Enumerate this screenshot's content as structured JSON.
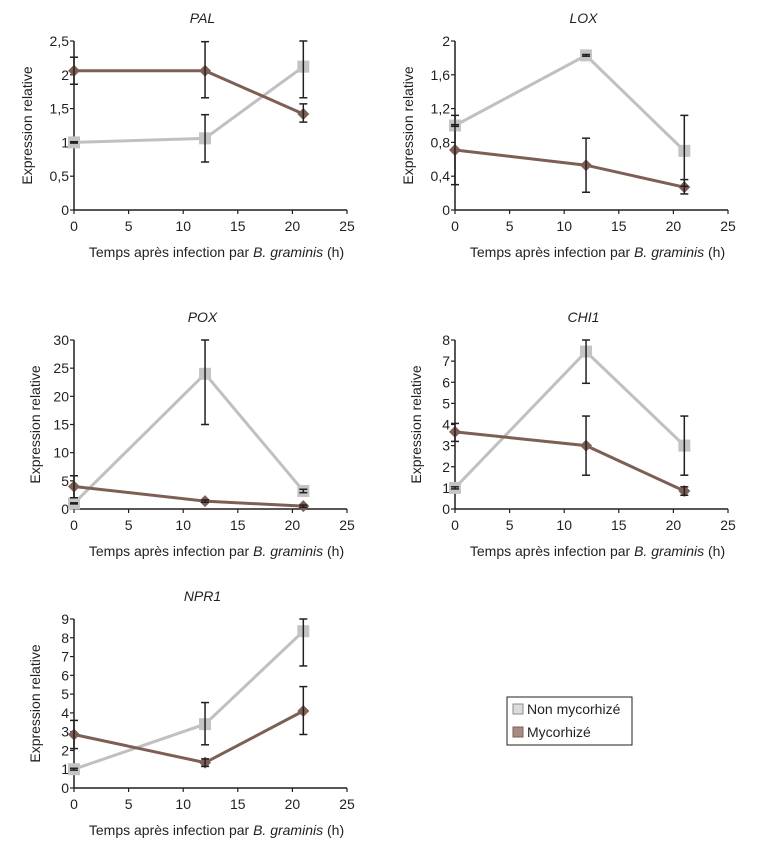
{
  "legend": {
    "items": [
      {
        "label": "Non mycorhizé",
        "color": "#c0c0c0"
      },
      {
        "label": "Mycorhizé",
        "color": "#8b6a60"
      }
    ]
  },
  "colors": {
    "non_mycorhize": "#c0c0c0",
    "mycorhize": "#7e5f55",
    "error_bar": "#231f20",
    "axis": "#231f20"
  },
  "chart_data": [
    {
      "id": "pal",
      "type": "line",
      "title": "PAL",
      "xlabel_prefix": "Temps après infection par ",
      "xlabel_italic": "B. graminis",
      "xlabel_suffix": " (h)",
      "ylabel": "Expression relative",
      "x_ticks": [
        0,
        5,
        10,
        15,
        20,
        25
      ],
      "x_tick_labels": [
        "0",
        "5",
        "10",
        "15",
        "20",
        "25"
      ],
      "xlim": [
        0,
        25
      ],
      "y_ticks": [
        0,
        0.5,
        1,
        1.5,
        2,
        2.5
      ],
      "y_tick_labels": [
        "0",
        "0,5",
        "1",
        "1,5",
        "2",
        "2,5"
      ],
      "ylim": [
        0,
        2.5
      ],
      "grid": false,
      "series": [
        {
          "name": "Non mycorhizé",
          "marker": "square",
          "x": [
            0,
            12,
            21
          ],
          "values": [
            1.0,
            1.06,
            2.12
          ],
          "err_low": [
            0.99,
            0.71,
            1.66
          ],
          "err_high": [
            1.01,
            1.41,
            2.5
          ]
        },
        {
          "name": "Mycorhizé",
          "marker": "diamond",
          "x": [
            0,
            12,
            21
          ],
          "values": [
            2.06,
            2.06,
            1.42
          ],
          "err_low": [
            1.86,
            1.66,
            1.3
          ],
          "err_high": [
            2.26,
            2.49,
            1.57
          ]
        }
      ]
    },
    {
      "id": "lox",
      "type": "line",
      "title": "LOX",
      "xlabel_prefix": "Temps après infection par ",
      "xlabel_italic": "B. graminis",
      "xlabel_suffix": " (h)",
      "ylabel": "Expression relative",
      "x_ticks": [
        0,
        5,
        10,
        15,
        20,
        25
      ],
      "x_tick_labels": [
        "0",
        "5",
        "10",
        "15",
        "20",
        "25"
      ],
      "xlim": [
        0,
        25
      ],
      "y_ticks": [
        0,
        0.4,
        0.8,
        1.2,
        1.6,
        2
      ],
      "y_tick_labels": [
        "0",
        "0,4",
        "0,8",
        "1,2",
        "1,6",
        "2"
      ],
      "ylim": [
        0,
        2
      ],
      "grid": false,
      "series": [
        {
          "name": "Non mycorhizé",
          "marker": "square",
          "x": [
            0,
            12,
            21
          ],
          "values": [
            1.0,
            1.83,
            0.7
          ],
          "err_low": [
            0.99,
            1.82,
            0.28
          ],
          "err_high": [
            1.01,
            1.84,
            1.12
          ]
        },
        {
          "name": "Mycorhizé",
          "marker": "diamond",
          "x": [
            0,
            12,
            21
          ],
          "values": [
            0.71,
            0.53,
            0.27
          ],
          "err_low": [
            0.3,
            0.21,
            0.19
          ],
          "err_high": [
            1.12,
            0.85,
            0.36
          ]
        }
      ]
    },
    {
      "id": "pox",
      "type": "line",
      "title": "POX",
      "xlabel_prefix": "Temps après infection par ",
      "xlabel_italic": "B. graminis",
      "xlabel_suffix": " (h)",
      "ylabel": "Expression relative",
      "x_ticks": [
        0,
        5,
        10,
        15,
        20,
        25
      ],
      "x_tick_labels": [
        "0",
        "5",
        "10",
        "15",
        "20",
        "25"
      ],
      "xlim": [
        0,
        25
      ],
      "y_ticks": [
        0,
        5,
        10,
        15,
        20,
        25,
        30
      ],
      "y_tick_labels": [
        "0",
        "5",
        "10",
        "15",
        "20",
        "25",
        "30"
      ],
      "ylim": [
        0,
        30
      ],
      "grid": false,
      "series": [
        {
          "name": "Non mycorhizé",
          "marker": "square",
          "x": [
            0,
            12,
            21
          ],
          "values": [
            1.0,
            24.0,
            3.2
          ],
          "err_low": [
            0.9,
            15.0,
            2.9
          ],
          "err_high": [
            1.1,
            30.0,
            3.5
          ]
        },
        {
          "name": "Mycorhizé",
          "marker": "diamond",
          "x": [
            0,
            12,
            21
          ],
          "values": [
            4.0,
            1.4,
            0.5
          ],
          "err_low": [
            2.0,
            1.2,
            0.3
          ],
          "err_high": [
            5.9,
            1.6,
            0.7
          ]
        }
      ]
    },
    {
      "id": "chi1",
      "type": "line",
      "title": "CHI1",
      "xlabel_prefix": "Temps après infection par ",
      "xlabel_italic": "B. graminis",
      "xlabel_suffix": " (h)",
      "ylabel": "Expression relative",
      "x_ticks": [
        0,
        5,
        10,
        15,
        20,
        25
      ],
      "x_tick_labels": [
        "0",
        "5",
        "10",
        "15",
        "20",
        "25"
      ],
      "xlim": [
        0,
        25
      ],
      "y_ticks": [
        0,
        1,
        2,
        3,
        4,
        5,
        6,
        7,
        8
      ],
      "y_tick_labels": [
        "0",
        "1",
        "2",
        "3",
        "4",
        "5",
        "6",
        "7",
        "8"
      ],
      "ylim": [
        0,
        8
      ],
      "grid": false,
      "series": [
        {
          "name": "Non mycorhizé",
          "marker": "square",
          "x": [
            0,
            12,
            21
          ],
          "values": [
            1.0,
            7.45,
            3.0
          ],
          "err_low": [
            0.95,
            5.95,
            1.6
          ],
          "err_high": [
            1.05,
            8.0,
            4.4
          ]
        },
        {
          "name": "Mycorhizé",
          "marker": "diamond",
          "x": [
            0,
            12,
            21
          ],
          "values": [
            3.65,
            3.0,
            0.85
          ],
          "err_low": [
            3.2,
            1.6,
            0.65
          ],
          "err_high": [
            4.05,
            4.4,
            1.05
          ]
        }
      ]
    },
    {
      "id": "npr1",
      "type": "line",
      "title": "NPR1",
      "xlabel_prefix": "Temps après infection par ",
      "xlabel_italic": "B. graminis",
      "xlabel_suffix": " (h)",
      "ylabel": "Expression relative",
      "x_ticks": [
        0,
        5,
        10,
        15,
        20,
        25
      ],
      "x_tick_labels": [
        "0",
        "5",
        "10",
        "15",
        "20",
        "25"
      ],
      "xlim": [
        0,
        25
      ],
      "y_ticks": [
        0,
        1,
        2,
        3,
        4,
        5,
        6,
        7,
        8,
        9
      ],
      "y_tick_labels": [
        "0",
        "1",
        "2",
        "3",
        "4",
        "5",
        "6",
        "7",
        "8",
        "9"
      ],
      "ylim": [
        0,
        9
      ],
      "grid": false,
      "series": [
        {
          "name": "Non mycorhizé",
          "marker": "square",
          "x": [
            0,
            12,
            21
          ],
          "values": [
            1.0,
            3.4,
            8.35
          ],
          "err_low": [
            0.95,
            2.3,
            6.5
          ],
          "err_high": [
            1.05,
            4.55,
            9.0
          ]
        },
        {
          "name": "Mycorhizé",
          "marker": "diamond",
          "x": [
            0,
            12,
            21
          ],
          "values": [
            2.85,
            1.35,
            4.1
          ],
          "err_low": [
            2.1,
            1.15,
            2.85
          ],
          "err_high": [
            3.6,
            1.55,
            5.4
          ]
        }
      ]
    }
  ]
}
